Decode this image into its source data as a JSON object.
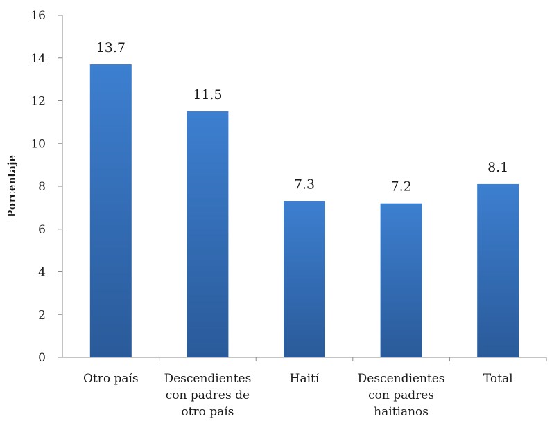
{
  "chart_data": {
    "type": "bar",
    "categories": [
      [
        "Otro país"
      ],
      [
        "Descendientes",
        "con padres de",
        "otro país"
      ],
      [
        "Haití"
      ],
      [
        "Descendientes",
        "con padres",
        "haitianos"
      ],
      [
        "Total"
      ]
    ],
    "values": [
      13.7,
      11.5,
      7.3,
      7.2,
      8.1
    ],
    "value_labels": [
      "13.7",
      "11.5",
      "7.3",
      "7.2",
      "8.1"
    ],
    "title": "",
    "xlabel": "",
    "ylabel": "Porcentaje",
    "ylim": [
      0,
      16
    ],
    "yticks": [
      "0",
      "2",
      "4",
      "6",
      "8",
      "10",
      "12",
      "14",
      "16"
    ],
    "grid": false,
    "legend": "none",
    "colors": {
      "bar_top": "#3d7fd0",
      "bar_bottom": "#2a5a99",
      "axis": "#888888"
    }
  }
}
